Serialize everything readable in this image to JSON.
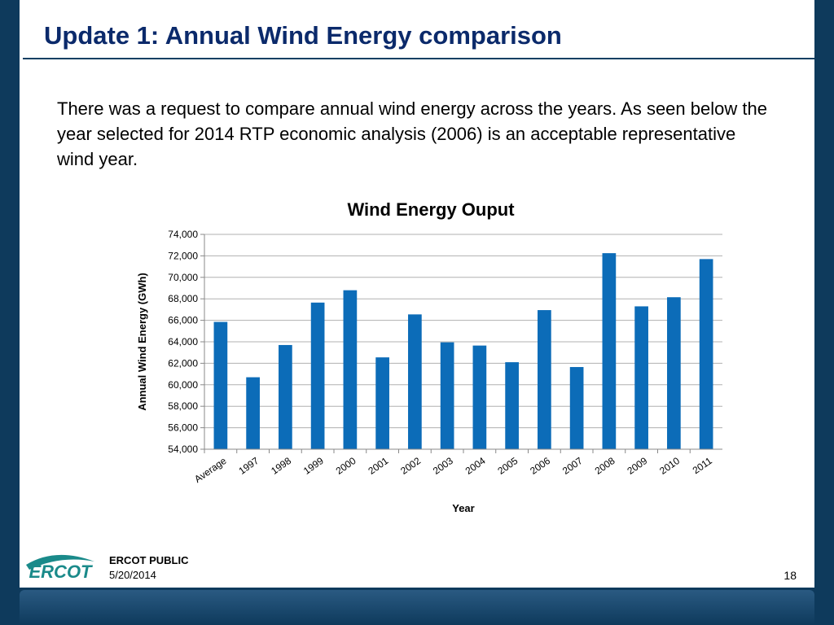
{
  "slide": {
    "title": "Update 1: Annual Wind Energy comparison",
    "body": "There was a request to compare annual wind energy across the years. As seen below the year selected for 2014 RTP economic analysis (2006) is an acceptable representative wind year.",
    "footer_label": "ERCOT PUBLIC",
    "footer_date": "5/20/2014",
    "page_number": "18",
    "logo_text": "ERCOT"
  },
  "colors": {
    "title": "#0b2a6b",
    "bar": "#0c6cb8",
    "frame": "#0e3a5c",
    "logo": "#1a8a8a"
  },
  "chart_data": {
    "type": "bar",
    "title": "Wind Energy Ouput",
    "xlabel": "Year",
    "ylabel": "Annual Wind Energy (GWh)",
    "ylim": [
      54000,
      74000
    ],
    "yticks": [
      "54,000",
      "56,000",
      "58,000",
      "60,000",
      "62,000",
      "64,000",
      "66,000",
      "68,000",
      "70,000",
      "72,000",
      "74,000"
    ],
    "categories": [
      "Average",
      "1997",
      "1998",
      "1999",
      "2000",
      "2001",
      "2002",
      "2003",
      "2004",
      "2005",
      "2006",
      "2007",
      "2008",
      "2009",
      "2010",
      "2011"
    ],
    "values": [
      65850,
      60700,
      63700,
      67650,
      68800,
      62550,
      66550,
      63950,
      63650,
      62100,
      66950,
      61650,
      72250,
      67300,
      68150,
      71700
    ],
    "grid": true,
    "legend": "none"
  }
}
